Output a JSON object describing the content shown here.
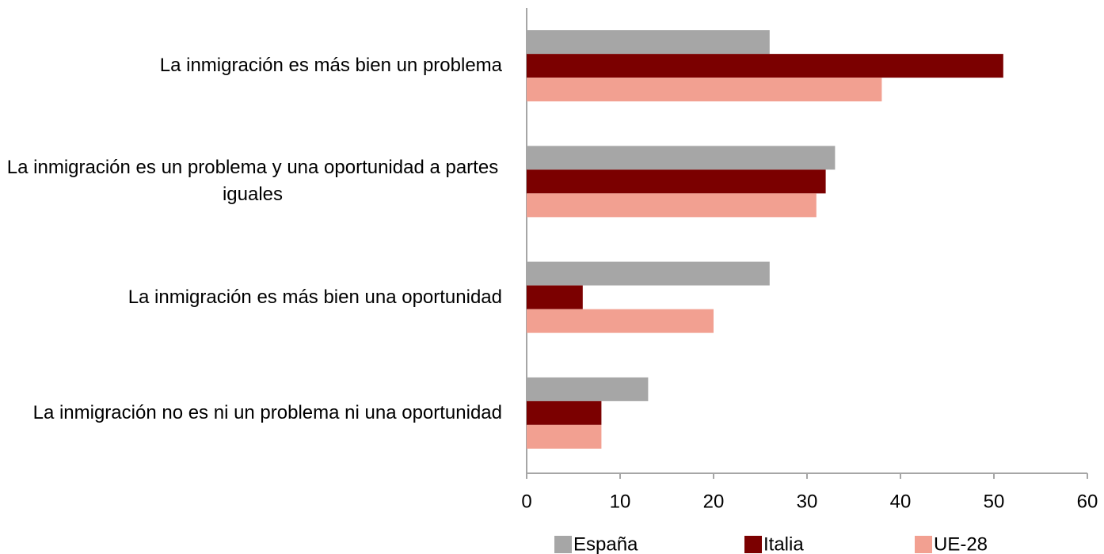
{
  "chart_data": {
    "type": "bar",
    "orientation": "horizontal",
    "categories": [
      "La inmigración es más bien un problema",
      "La inmigración es un problema y una oportunidad a partes iguales",
      "La inmigración es más bien una oportunidad",
      "La inmigración no es ni un problema ni una oportunidad"
    ],
    "series": [
      {
        "name": "España",
        "color": "#a6a6a6",
        "values": [
          26,
          33,
          26,
          13
        ]
      },
      {
        "name": "Italia",
        "color": "#7b0000",
        "values": [
          51,
          32,
          6,
          8
        ]
      },
      {
        "name": "UE-28",
        "color": "#f2a091",
        "values": [
          38,
          31,
          20,
          8
        ]
      }
    ],
    "xlim": [
      0,
      60
    ],
    "xticks": [
      0,
      10,
      20,
      30,
      40,
      50,
      60
    ],
    "grid": false,
    "legend": "bottom"
  }
}
